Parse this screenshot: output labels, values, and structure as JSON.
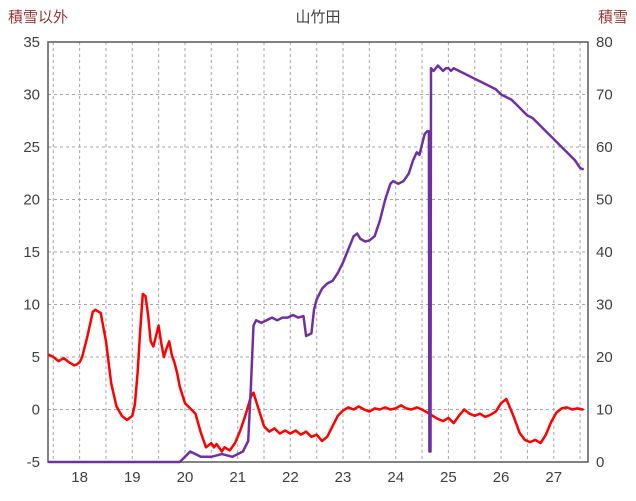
{
  "chart_data": {
    "type": "line",
    "title": "山竹田",
    "left_axis": {
      "label": "積雪以外",
      "min": -5,
      "max": 35,
      "ticks": [
        35,
        30,
        25,
        20,
        15,
        10,
        5,
        0,
        -5
      ]
    },
    "right_axis": {
      "label": "積雪",
      "min": 0,
      "max": 80,
      "ticks": [
        80,
        70,
        60,
        50,
        40,
        30,
        20,
        10,
        0
      ]
    },
    "x_axis": {
      "min": 17.4,
      "max": 27.65,
      "ticks": [
        18,
        19,
        20,
        21,
        22,
        23,
        24,
        25,
        26,
        27
      ],
      "gridline_step": 0.5
    },
    "grid": {
      "on": true,
      "color": "#a6a6a6",
      "dash": "3 3"
    },
    "styles": {
      "border_color": "#595959",
      "tick_label_color": "#404040",
      "title_color": "#404040",
      "axis_label_color": "#943634",
      "background": "#ffffff"
    },
    "series": [
      {
        "name": "積雪以外",
        "axis": "left",
        "color": "#ff0000",
        "width": 2.5,
        "x": [
          17.42,
          17.5,
          17.6,
          17.7,
          17.8,
          17.9,
          17.95,
          18.0,
          18.05,
          18.15,
          18.25,
          18.3,
          18.4,
          18.5,
          18.6,
          18.7,
          18.8,
          18.9,
          19.0,
          19.05,
          19.1,
          19.15,
          19.2,
          19.25,
          19.3,
          19.35,
          19.4,
          19.45,
          19.5,
          19.55,
          19.6,
          19.65,
          19.7,
          19.75,
          19.8,
          19.85,
          19.9,
          20.0,
          20.1,
          20.2,
          20.3,
          20.4,
          20.5,
          20.55,
          20.6,
          20.7,
          20.75,
          20.85,
          20.95,
          21.05,
          21.15,
          21.25,
          21.3,
          21.35,
          21.45,
          21.5,
          21.6,
          21.7,
          21.8,
          21.9,
          22.0,
          22.1,
          22.2,
          22.3,
          22.4,
          22.5,
          22.6,
          22.7,
          22.8,
          22.9,
          23.0,
          23.1,
          23.2,
          23.3,
          23.4,
          23.5,
          23.6,
          23.7,
          23.8,
          23.9,
          24.0,
          24.1,
          24.2,
          24.3,
          24.4,
          24.5,
          24.6,
          24.7,
          24.8,
          24.9,
          25.0,
          25.1,
          25.2,
          25.3,
          25.4,
          25.5,
          25.6,
          25.7,
          25.8,
          25.9,
          26.0,
          26.1,
          26.15,
          26.25,
          26.35,
          26.45,
          26.55,
          26.65,
          26.75,
          26.85,
          26.95,
          27.05,
          27.15,
          27.25,
          27.35,
          27.45,
          27.55
        ],
        "values": [
          5.2,
          5.0,
          4.6,
          4.9,
          4.5,
          4.2,
          4.3,
          4.5,
          5.0,
          7.0,
          9.3,
          9.5,
          9.2,
          6.5,
          2.5,
          0.3,
          -0.6,
          -1.0,
          -0.6,
          0.5,
          3.5,
          7.5,
          11.0,
          10.8,
          9.0,
          6.5,
          6.0,
          7.0,
          8.0,
          6.3,
          5.0,
          5.8,
          6.5,
          5.2,
          4.5,
          3.5,
          2.2,
          0.6,
          0.1,
          -0.4,
          -2.2,
          -3.6,
          -3.2,
          -3.6,
          -3.3,
          -4.0,
          -3.6,
          -3.9,
          -3.2,
          -2.0,
          -0.5,
          1.2,
          1.6,
          0.8,
          -0.8,
          -1.6,
          -2.1,
          -1.8,
          -2.3,
          -2.0,
          -2.3,
          -2.0,
          -2.4,
          -2.1,
          -2.6,
          -2.4,
          -3.0,
          -2.6,
          -1.6,
          -0.6,
          -0.1,
          0.2,
          0.0,
          0.3,
          0.0,
          -0.2,
          0.1,
          0.0,
          0.2,
          0.0,
          0.1,
          0.4,
          0.1,
          0.0,
          0.2,
          0.0,
          -0.3,
          -0.6,
          -0.9,
          -1.1,
          -0.8,
          -1.3,
          -0.6,
          0.0,
          -0.4,
          -0.6,
          -0.4,
          -0.7,
          -0.5,
          -0.2,
          0.6,
          1.0,
          0.4,
          -0.8,
          -2.2,
          -2.9,
          -3.1,
          -2.9,
          -3.2,
          -2.4,
          -1.2,
          -0.3,
          0.1,
          0.2,
          0.0,
          0.1,
          0.0
        ]
      },
      {
        "name": "積雪",
        "axis": "right",
        "color": "#7030a0",
        "width": 2.5,
        "x": [
          17.42,
          17.7,
          18.0,
          18.5,
          19.0,
          19.5,
          19.9,
          20.0,
          20.1,
          20.2,
          20.3,
          20.5,
          20.7,
          20.9,
          21.0,
          21.1,
          21.2,
          21.25,
          21.3,
          21.35,
          21.45,
          21.55,
          21.65,
          21.75,
          21.85,
          21.95,
          22.05,
          22.15,
          22.25,
          22.3,
          22.4,
          22.45,
          22.5,
          22.6,
          22.7,
          22.8,
          22.9,
          23.0,
          23.1,
          23.2,
          23.27,
          23.33,
          23.42,
          23.5,
          23.6,
          23.7,
          23.8,
          23.9,
          23.95,
          24.05,
          24.15,
          24.25,
          24.33,
          24.4,
          24.45,
          24.5,
          24.55,
          24.6,
          24.63,
          24.64,
          24.66,
          24.67,
          24.72,
          24.8,
          24.85,
          24.9,
          24.95,
          25.0,
          25.05,
          25.1,
          25.2,
          25.3,
          25.4,
          25.5,
          25.6,
          25.7,
          25.8,
          25.9,
          26.0,
          26.1,
          26.2,
          26.3,
          26.4,
          26.5,
          26.6,
          26.7,
          26.8,
          26.9,
          27.0,
          27.1,
          27.2,
          27.3,
          27.4,
          27.5,
          27.55
        ],
        "values": [
          0,
          0,
          0,
          0,
          0,
          0,
          0,
          1,
          2,
          1.5,
          1,
          1,
          1.5,
          1,
          1.5,
          2,
          4,
          14,
          26,
          27,
          26.5,
          27,
          27.5,
          27,
          27.5,
          27.5,
          28,
          27.5,
          27.8,
          24,
          24.5,
          29,
          31,
          33,
          34,
          34.5,
          36,
          38,
          40.5,
          43,
          43.5,
          42.5,
          42,
          42.2,
          43,
          46,
          50,
          53,
          53.5,
          53,
          53.5,
          55,
          57.5,
          59,
          58.5,
          60.5,
          62.5,
          63,
          63,
          2,
          2,
          75,
          74.5,
          75.5,
          75,
          74.5,
          75,
          75,
          74.5,
          75,
          74.5,
          74,
          73.5,
          73,
          72.5,
          72,
          71.5,
          71,
          70,
          69.5,
          69,
          68,
          67,
          66,
          65.5,
          64.5,
          63.5,
          62.5,
          61.5,
          60.5,
          59.5,
          58.5,
          57.5,
          56,
          55.8
        ]
      }
    ]
  }
}
